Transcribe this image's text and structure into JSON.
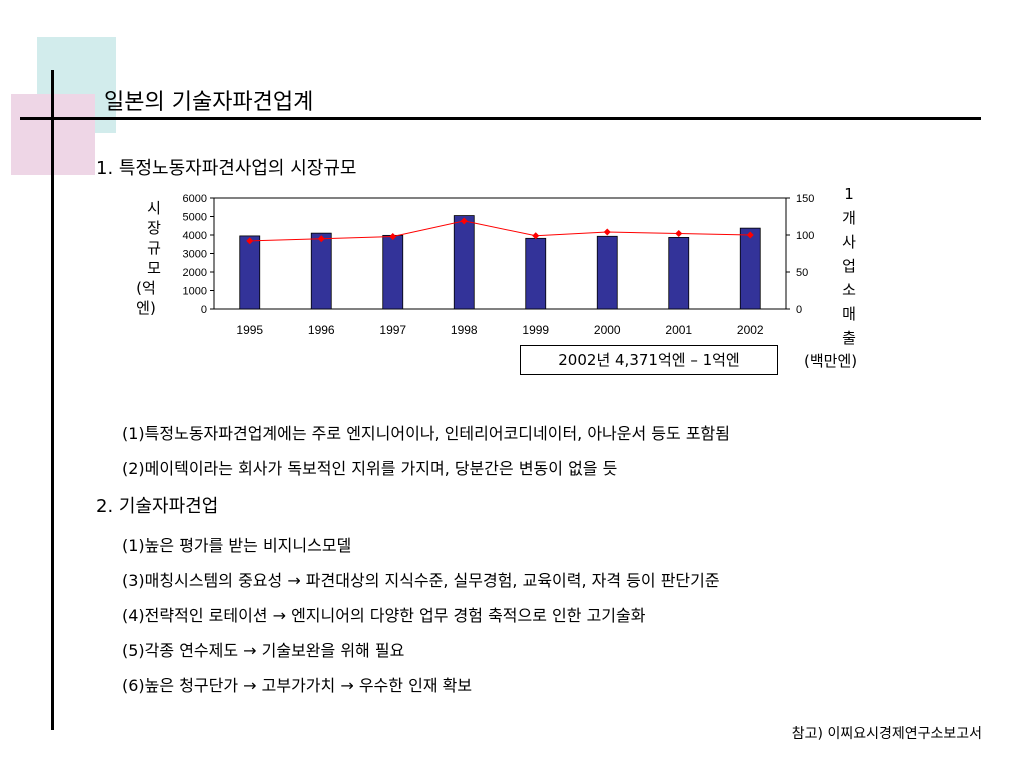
{
  "title": "일본의 기술자파견업계",
  "section1": {
    "heading": "1. 특정노동자파견사업의 시장규모"
  },
  "chart_data": {
    "type": "bar",
    "categories": [
      "1995",
      "1996",
      "1997",
      "1998",
      "1999",
      "2000",
      "2001",
      "2002"
    ],
    "series": [
      {
        "name": "시장규모",
        "type": "bar",
        "axis": "left",
        "values": [
          3950,
          4100,
          3980,
          5050,
          3820,
          3930,
          3870,
          4371
        ],
        "color": "#333399"
      },
      {
        "name": "1개사업소매출",
        "type": "line",
        "axis": "right",
        "values": [
          92,
          95,
          98,
          119,
          99,
          104,
          102,
          100
        ],
        "color": "#ff0000"
      }
    ],
    "ylabel": "시장규모 (억엔)",
    "ylabel_right": "1개사업소매출 (백만엔)",
    "ylim": [
      0,
      6000
    ],
    "ylim_right": [
      0,
      150
    ],
    "yticks": [
      0,
      1000,
      2000,
      3000,
      4000,
      5000,
      6000
    ],
    "yticks_right": [
      0,
      50,
      100,
      150
    ],
    "grid": false
  },
  "axis_left": {
    "chars": [
      "시",
      "장",
      "규",
      "모"
    ],
    "unit": "(억엔)"
  },
  "axis_right": {
    "chars": [
      "1",
      "개",
      "사",
      "업",
      "소",
      "매",
      "출"
    ],
    "unit": "(백만엔)"
  },
  "note": "2002년 4,371억엔 – 1억엔",
  "section1_items": [
    "(1)특정노동자파견업계에는 주로 엔지니어이나, 인테리어코디네이터, 아나운서 등도 포함됨",
    "(2)메이텍이라는 회사가 독보적인 지위를 가지며, 당분간은 변동이 없을 듯"
  ],
  "section2": {
    "heading": "2. 기술자파견업"
  },
  "section2_items": [
    "(1)높은 평가를 받는 비지니스모델",
    "(3)매칭시스템의 중요성 → 파견대상의 지식수준, 실무경험, 교육이력, 자격 등이 판단기준",
    "(4)전략적인 로테이션 → 엔지니어의 다양한 업무 경험 축적으로 인한 고기술화",
    "(5)각종 연수제도 → 기술보완을 위해 필요",
    "(6)높은 청구단가 → 고부가가치 → 우수한 인재 확보"
  ],
  "footer": "참고) 이찌요시경제연구소보고서"
}
